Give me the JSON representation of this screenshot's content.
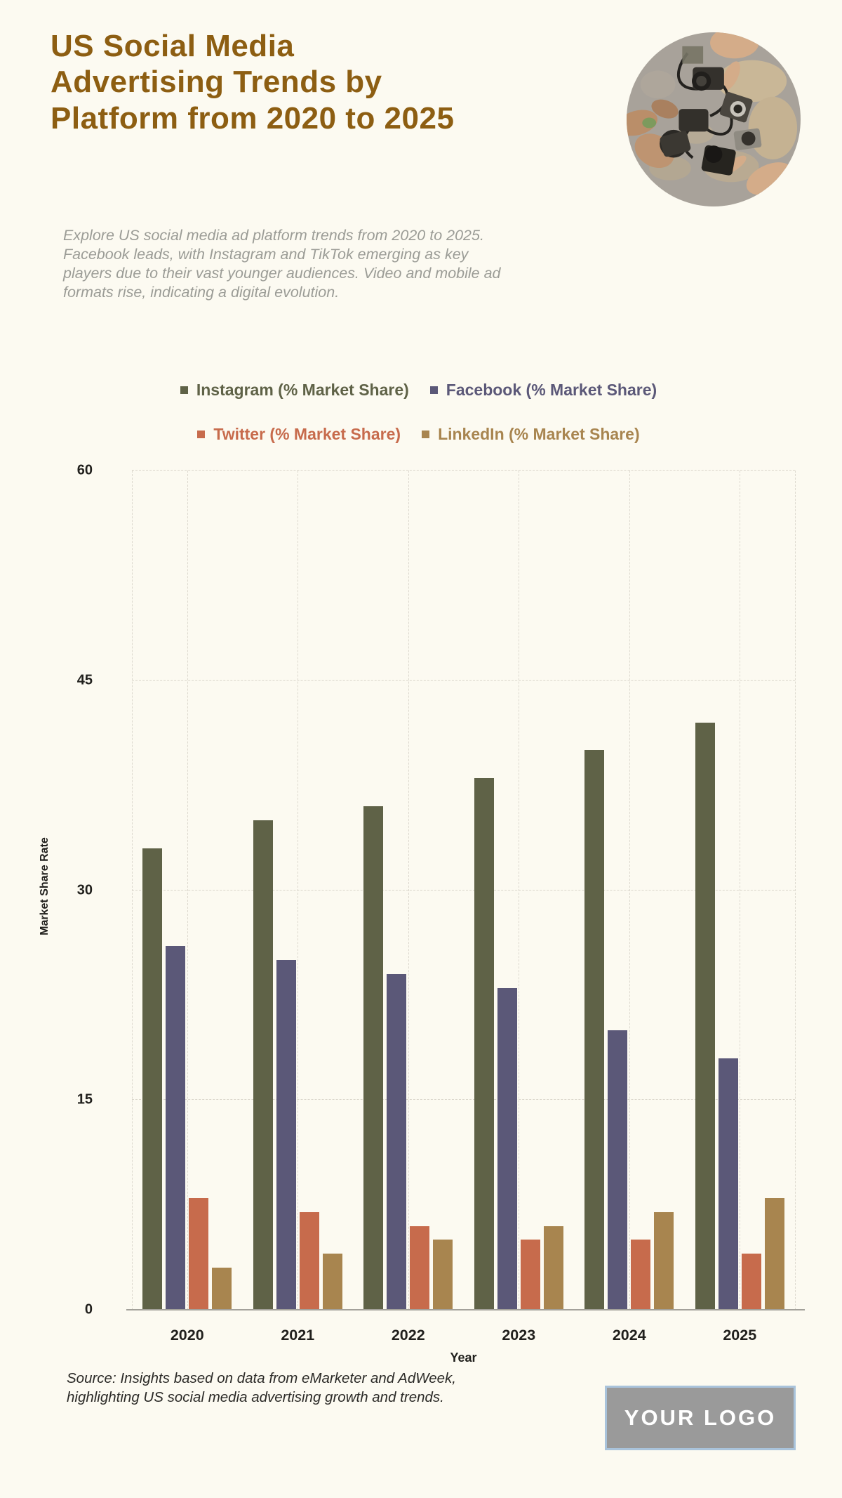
{
  "page": {
    "background": "#FCFAF1"
  },
  "header": {
    "title_lines": [
      "US Social Media",
      "Advertising Trends by",
      "Platform from 2020 to 2025"
    ],
    "title_color": "#8D5E12",
    "subtitle": "Explore US social media ad platform trends from 2020 to 2025. Facebook leads, with Instagram and TikTok emerging as key players due to their vast younger audiences. Video and mobile ad formats rise, indicating a digital evolution."
  },
  "chart_data": {
    "type": "bar",
    "categories": [
      "2020",
      "2021",
      "2022",
      "2023",
      "2024",
      "2025"
    ],
    "series": [
      {
        "name": "Instagram (% Market Share)",
        "color": "#5F6247",
        "values": [
          33,
          35,
          36,
          38,
          40,
          42
        ]
      },
      {
        "name": "Facebook (% Market Share)",
        "color": "#5B5878",
        "values": [
          26,
          25,
          24,
          23,
          20,
          18
        ]
      },
      {
        "name": "Twitter (% Market Share)",
        "color": "#C76B4C",
        "values": [
          8,
          7,
          6,
          5,
          5,
          4
        ]
      },
      {
        "name": "LinkedIn (% Market Share)",
        "color": "#A8854F",
        "values": [
          3,
          4,
          5,
          6,
          7,
          8
        ]
      }
    ],
    "xlabel": "Year",
    "ylabel": "Market Share Rate",
    "ylim": [
      0,
      60
    ],
    "yticks": [
      0,
      15,
      30,
      45,
      60
    ],
    "grid": true,
    "legend_position": "top"
  },
  "footer": {
    "source": "Source: Insights based on data from eMarketer and AdWeek, highlighting US social media advertising growth and trends.",
    "logo_text": "YOUR LOGO"
  }
}
